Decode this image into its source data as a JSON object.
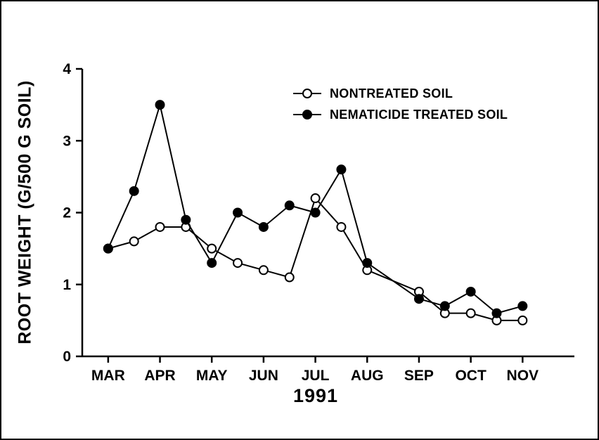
{
  "figure": {
    "background_color": "#ffffff",
    "frame_color": "#000000",
    "ink_color": "#000000",
    "marker_open_fill": "#ffffff"
  },
  "chart_data": {
    "type": "line",
    "title": "",
    "xlabel": "1991",
    "ylabel": "ROOT WEIGHT (G/500 G SOIL)",
    "x_tick_labels": [
      "MAR",
      "APR",
      "MAY",
      "JUN",
      "JUL",
      "AUG",
      "SEP",
      "OCT",
      "NOV"
    ],
    "x_tick_positions": [
      0,
      1,
      2,
      3,
      4,
      5,
      6,
      7,
      8
    ],
    "y_ticks": [
      0,
      1,
      2,
      3,
      4
    ],
    "y_tick_labels": [
      "0",
      "1",
      "2",
      "3",
      "4"
    ],
    "xlim": [
      -0.5,
      9.0
    ],
    "ylim": [
      0,
      4
    ],
    "grid": false,
    "legend_position": "inside-upper-right",
    "series": [
      {
        "name": "NONTREATED SOIL",
        "marker": "open-circle",
        "color": "#000000",
        "x": [
          0,
          0.5,
          1,
          1.5,
          2,
          2.5,
          3,
          3.5,
          4,
          4.5,
          5,
          6,
          6.5,
          7,
          7.5,
          8
        ],
        "values": [
          1.5,
          1.6,
          1.8,
          1.8,
          1.5,
          1.3,
          1.2,
          1.1,
          2.2,
          1.8,
          1.2,
          0.9,
          0.6,
          0.6,
          0.5,
          0.5
        ]
      },
      {
        "name": "NEMATICIDE TREATED SOIL",
        "marker": "filled-circle",
        "color": "#000000",
        "x": [
          0,
          0.5,
          1,
          1.5,
          2,
          2.5,
          3,
          3.5,
          4,
          4.5,
          5,
          6,
          6.5,
          7,
          7.5,
          8
        ],
        "values": [
          1.5,
          2.3,
          3.5,
          1.9,
          1.3,
          2.0,
          1.8,
          2.1,
          2.0,
          2.6,
          1.3,
          0.8,
          0.7,
          0.9,
          0.6,
          0.7
        ]
      }
    ]
  }
}
